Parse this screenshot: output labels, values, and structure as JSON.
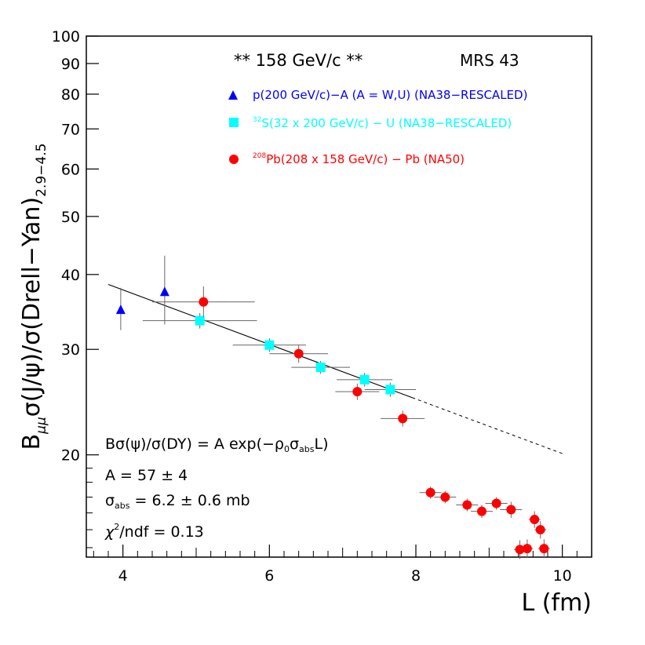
{
  "chart_data": {
    "type": "scatter",
    "xlabel": "L (fm)",
    "ylabel": {
      "main": "B",
      "sub1": "μμ",
      "mid": "σ(J/ψ)/σ(Drell−Yan)",
      "sub2": "2.9−4.5"
    },
    "xlim": [
      3.5,
      10.4
    ],
    "ylim": [
      13.5,
      100
    ],
    "y_scale": "log",
    "x_ticks": [
      4,
      6,
      8,
      10
    ],
    "y_ticks": [
      20,
      30,
      40,
      50,
      60,
      70,
      80,
      90,
      100
    ],
    "header_left": "** 158 GeV/c **",
    "header_right": "MRS 43",
    "legend_position": "top-right",
    "series": [
      {
        "name": "p(200 GeV/c)−A (A = W,U) (NA38−RESCALED)",
        "color": "#0000ff",
        "marker": "triangle",
        "points": [
          {
            "x": 3.97,
            "y": 35.0,
            "xerr": 0,
            "yerr_lo": 2.7,
            "yerr_hi": 3.0
          },
          {
            "x": 4.57,
            "y": 37.5,
            "xerr": 0,
            "yerr_lo": 4.5,
            "yerr_hi": 5.5
          }
        ]
      },
      {
        "name": "32S(32 x 200 GeV/c) − U (NA38−RESCALED)",
        "label_sup": "32",
        "label_rest": "S(32 x 200 GeV/c) − U (NA38−RESCALED)",
        "color": "#00ffff",
        "marker": "square",
        "points": [
          {
            "x": 5.05,
            "y": 33.5,
            "xerr": 0.78,
            "yerr_lo": 1.0,
            "yerr_hi": 1.0
          },
          {
            "x": 6.0,
            "y": 30.5,
            "xerr": 0.5,
            "yerr_lo": 0.8,
            "yerr_hi": 0.8
          },
          {
            "x": 6.7,
            "y": 28.0,
            "xerr": 0.4,
            "yerr_lo": 0.7,
            "yerr_hi": 0.7
          },
          {
            "x": 7.3,
            "y": 26.7,
            "xerr": 0.38,
            "yerr_lo": 0.7,
            "yerr_hi": 0.7
          },
          {
            "x": 7.65,
            "y": 25.7,
            "xerr": 0.35,
            "yerr_lo": 0.7,
            "yerr_hi": 0.7
          }
        ]
      },
      {
        "name": "208Pb(208 x 158 GeV/c) − Pb (NA50)",
        "label_sup": "208",
        "label_rest": "Pb(208 x 158 GeV/c) − Pb (NA50)",
        "color": "#ff0000",
        "marker": "circle",
        "points": [
          {
            "x": 5.1,
            "y": 36.0,
            "xerr": 0.7,
            "yerr_lo": 2.0,
            "yerr_hi": 2.2
          },
          {
            "x": 6.4,
            "y": 29.5,
            "xerr": 0.4,
            "yerr_lo": 1.0,
            "yerr_hi": 1.0
          },
          {
            "x": 7.2,
            "y": 25.5,
            "xerr": 0.3,
            "yerr_lo": 0.8,
            "yerr_hi": 0.8
          },
          {
            "x": 7.82,
            "y": 23.0,
            "xerr": 0.3,
            "yerr_lo": 0.7,
            "yerr_hi": 0.7
          },
          {
            "x": 8.2,
            "y": 17.3,
            "xerr": 0.15,
            "yerr_lo": 0.4,
            "yerr_hi": 0.4
          },
          {
            "x": 8.4,
            "y": 17.0,
            "xerr": 0.15,
            "yerr_lo": 0.4,
            "yerr_hi": 0.4
          },
          {
            "x": 8.7,
            "y": 16.5,
            "xerr": 0.15,
            "yerr_lo": 0.4,
            "yerr_hi": 0.4
          },
          {
            "x": 8.9,
            "y": 16.1,
            "xerr": 0.15,
            "yerr_lo": 0.4,
            "yerr_hi": 0.4
          },
          {
            "x": 9.1,
            "y": 16.6,
            "xerr": 0.15,
            "yerr_lo": 0.4,
            "yerr_hi": 0.4
          },
          {
            "x": 9.3,
            "y": 16.2,
            "xerr": 0.15,
            "yerr_lo": 0.5,
            "yerr_hi": 0.5
          },
          {
            "x": 9.42,
            "y": 13.9,
            "xerr": 0.08,
            "yerr_lo": 0.5,
            "yerr_hi": 0.5
          },
          {
            "x": 9.52,
            "y": 13.95,
            "xerr": 0.08,
            "yerr_lo": 0.5,
            "yerr_hi": 0.5
          },
          {
            "x": 9.62,
            "y": 15.6,
            "xerr": 0.08,
            "yerr_lo": 0.5,
            "yerr_hi": 0.5
          },
          {
            "x": 9.7,
            "y": 15.0,
            "xerr": 0.08,
            "yerr_lo": 0.5,
            "yerr_hi": 0.5
          },
          {
            "x": 9.75,
            "y": 13.95,
            "xerr": 0.08,
            "yerr_lo": 0.5,
            "yerr_hi": 0.5
          }
        ]
      }
    ],
    "fit": {
      "A": 57,
      "x_start": 3.8,
      "x_solid_end": 7.95,
      "x_end": 10.0,
      "y_start": 38.5,
      "y_end": 20.1
    },
    "annotations": {
      "formula": "Bσ(ψ)/σ(DY) = A exp(−ρ0σabsL)",
      "A": "A = 57 ± 4",
      "sigma_pre": "σ",
      "sigma_sub": "abs",
      "sigma_rest": " = 6.2 ± 0.6 mb",
      "chi_pre": "χ",
      "chi_sup": "2",
      "chi_rest": "/ndf = 0.13"
    }
  }
}
